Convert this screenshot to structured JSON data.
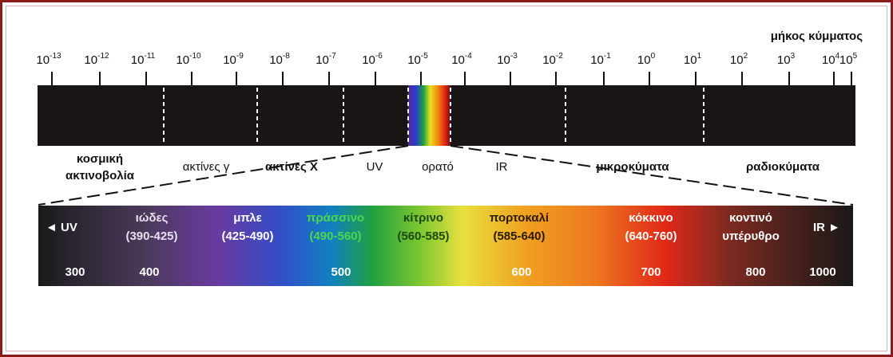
{
  "wavelength_label": "μήκος κύμματος",
  "exponents": [
    "-13",
    "-12",
    "-11",
    "-10",
    "-9",
    "-8",
    "-7",
    "-6",
    "-5",
    "-4",
    "-3",
    "-2",
    "-1",
    "0",
    "1",
    "2",
    "3",
    "4",
    "5"
  ],
  "tick_base": "10",
  "regions": [
    {
      "label": "κοσμική",
      "label2": "ακτινοβολία"
    },
    {
      "label": "ακτίνες γ"
    },
    {
      "label": "ακτίνες Χ"
    },
    {
      "label": "UV"
    },
    {
      "label": "ορατό"
    },
    {
      "label": "IR"
    },
    {
      "label": "μικροκύματα"
    },
    {
      "label": "ραδιοκύματα"
    }
  ],
  "visible_band": {
    "uv_label": "◄ UV",
    "ir_label": "IR ►",
    "colors": [
      {
        "name": "ιώδες",
        "range": "(390-425)"
      },
      {
        "name": "μπλε",
        "range": "(425-490)"
      },
      {
        "name": "πράσσινο",
        "range": "(490-560)"
      },
      {
        "name": "κίτρινο",
        "range": "(560-585)"
      },
      {
        "name": "πορτοκαλί",
        "range": "(585-640)"
      },
      {
        "name": "κόκκινο",
        "range": "(640-760)"
      },
      {
        "name": "κοντινό",
        "range": "υπέρυθρο"
      }
    ],
    "scale": [
      "300",
      "400",
      "500",
      "600",
      "700",
      "800",
      "1000"
    ]
  }
}
